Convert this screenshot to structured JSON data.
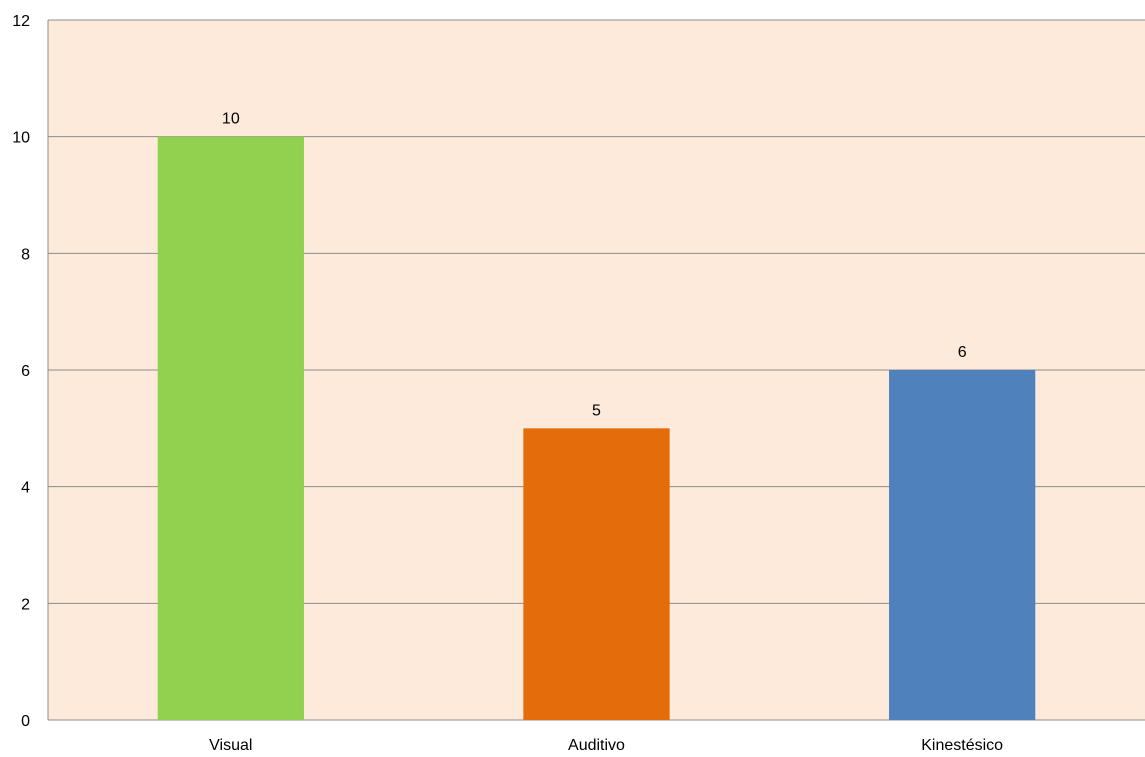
{
  "chart_data": {
    "type": "bar",
    "categories": [
      "Visual",
      "Auditivo",
      "Kinestésico"
    ],
    "values": [
      10,
      5,
      6
    ],
    "value_labels": [
      "10",
      "5",
      "6"
    ],
    "colors": [
      "#92D050",
      "#E46C0A",
      "#4F81BD"
    ],
    "y_ticks": [
      "0",
      "2",
      "4",
      "6",
      "8",
      "10",
      "12"
    ],
    "ylim": [
      0,
      12
    ],
    "y_step": 2,
    "grid": true,
    "legend": "none",
    "plot_background": "#FDEADA",
    "gridline_color": "#8C8C8C"
  }
}
